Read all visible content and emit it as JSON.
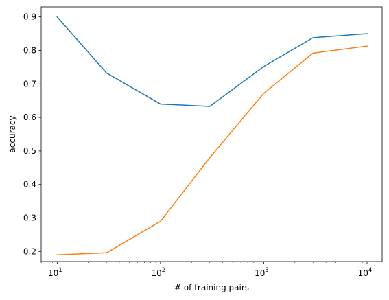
{
  "chart_data": {
    "type": "line",
    "xscale": "log",
    "xlabel": "# of training pairs",
    "ylabel": "accuracy",
    "xlim": [
      7,
      14000
    ],
    "ylim": [
      0.17,
      0.93
    ],
    "x": [
      10,
      30,
      100,
      300,
      1000,
      3000,
      10000
    ],
    "xticks": [
      {
        "value": 10,
        "base": "10",
        "exp": "1"
      },
      {
        "value": 100,
        "base": "10",
        "exp": "2"
      },
      {
        "value": 1000,
        "base": "10",
        "exp": "3"
      },
      {
        "value": 10000,
        "base": "10",
        "exp": "4"
      }
    ],
    "yticks": [
      "0.2",
      "0.3",
      "0.4",
      "0.5",
      "0.6",
      "0.7",
      "0.8",
      "0.9"
    ],
    "grid": false,
    "series": [
      {
        "color": "#1f77b4",
        "values": [
          0.9,
          0.733,
          0.64,
          0.633,
          0.752,
          0.838,
          0.85
        ]
      },
      {
        "color": "#ff7f0e",
        "values": [
          0.19,
          0.196,
          0.29,
          0.48,
          0.672,
          0.792,
          0.813
        ]
      }
    ]
  }
}
